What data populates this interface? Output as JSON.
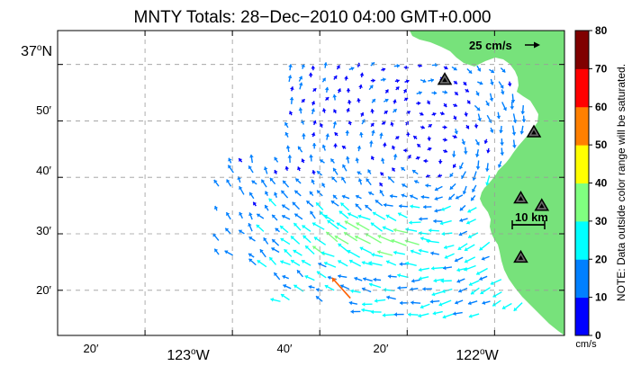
{
  "title": "MNTY Totals: 28−Dec−2010 04:00 GMT+0.000",
  "lat_ticks": [
    {
      "label": "37",
      "deg": true,
      "hemi": "N",
      "lat": 37.0
    },
    {
      "label": "50′",
      "lat": 36.8333
    },
    {
      "label": "40′",
      "lat": 36.6667
    },
    {
      "label": "30′",
      "lat": 36.5
    },
    {
      "label": "20′",
      "lat": 36.3333
    }
  ],
  "lon_ticks": [
    {
      "label": "20′",
      "lon": -123.3333
    },
    {
      "label": "123",
      "deg": true,
      "hemi": "W",
      "lon": -123.0
    },
    {
      "label": "40′",
      "lon": -122.6667
    },
    {
      "label": "20′",
      "lon": -122.3333
    },
    {
      "label": "122",
      "deg": true,
      "hemi": "W",
      "lon": -122.0
    }
  ],
  "colorbar": {
    "ticks": [
      "0",
      "10",
      "20",
      "30",
      "40",
      "50",
      "60",
      "70",
      "80"
    ],
    "colors": [
      "#0000ff",
      "#0080ff",
      "#00ffff",
      "#80ff80",
      "#ffff00",
      "#ff8000",
      "#ff0000",
      "#800000"
    ],
    "unit": "cm/s",
    "note": "NOTE: Data outside color range will be saturated."
  },
  "reference_vector_label": "25 cm/s",
  "scale_bar_label": "10 km",
  "land_color": "#77e27b",
  "sites": [
    {
      "lon": -122.19,
      "lat": 36.955
    },
    {
      "lon": -121.85,
      "lat": 36.8
    },
    {
      "lon": -121.9,
      "lat": 36.605
    },
    {
      "lon": -121.82,
      "lat": 36.583
    },
    {
      "lon": -121.9,
      "lat": 36.43
    }
  ],
  "current_field": {
    "lon_min": -123.05,
    "lon_max": -121.86,
    "lat_min": 36.26,
    "lat_max": 36.99,
    "eddy_center": {
      "lon": -122.2,
      "lat": 36.68
    }
  }
}
